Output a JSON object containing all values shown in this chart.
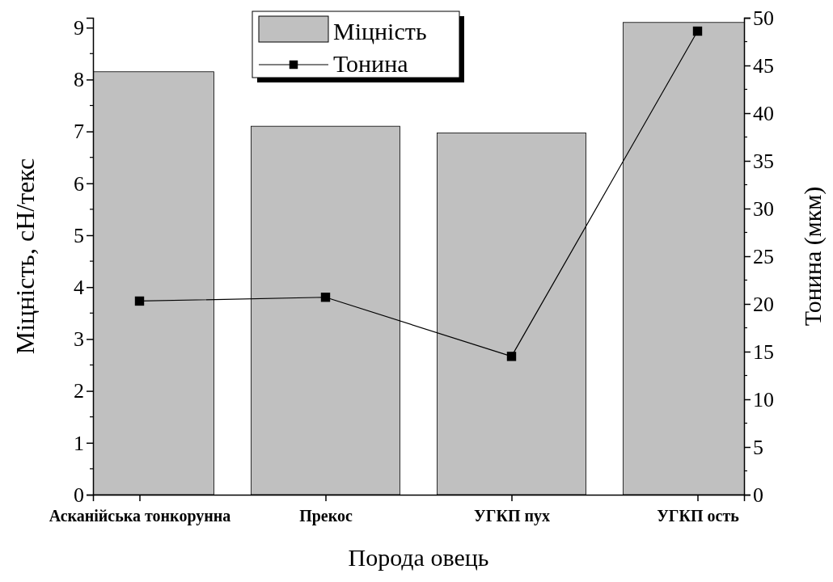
{
  "chart_data": {
    "type": "bar",
    "xlabel": "Порода овець",
    "ylabel": "Міцність, сН/текс",
    "y2label": "Тонина (мкм)",
    "categories": [
      "Асканійська тонкорунна",
      "Прекос",
      "УГКП пух",
      "УГКП ость"
    ],
    "series": [
      {
        "name": "Міцність",
        "color": "#c0c0c0",
        "values": [
          8.15,
          7.1,
          6.97,
          9.1
        ]
      },
      {
        "name": "Тонина",
        "type": "line",
        "axis": "y2",
        "color": "#000000",
        "marker": "square",
        "values": [
          20.3,
          20.7,
          14.5,
          48.6
        ]
      }
    ],
    "ylim": [
      0,
      9.19
    ],
    "yticks": [
      0,
      1,
      2,
      3,
      4,
      5,
      6,
      7,
      8,
      9
    ],
    "y2lim": [
      0,
      50
    ],
    "y2ticks": [
      0,
      5,
      10,
      15,
      20,
      25,
      30,
      35,
      40,
      45,
      50
    ],
    "legend": "top",
    "grid": false
  }
}
